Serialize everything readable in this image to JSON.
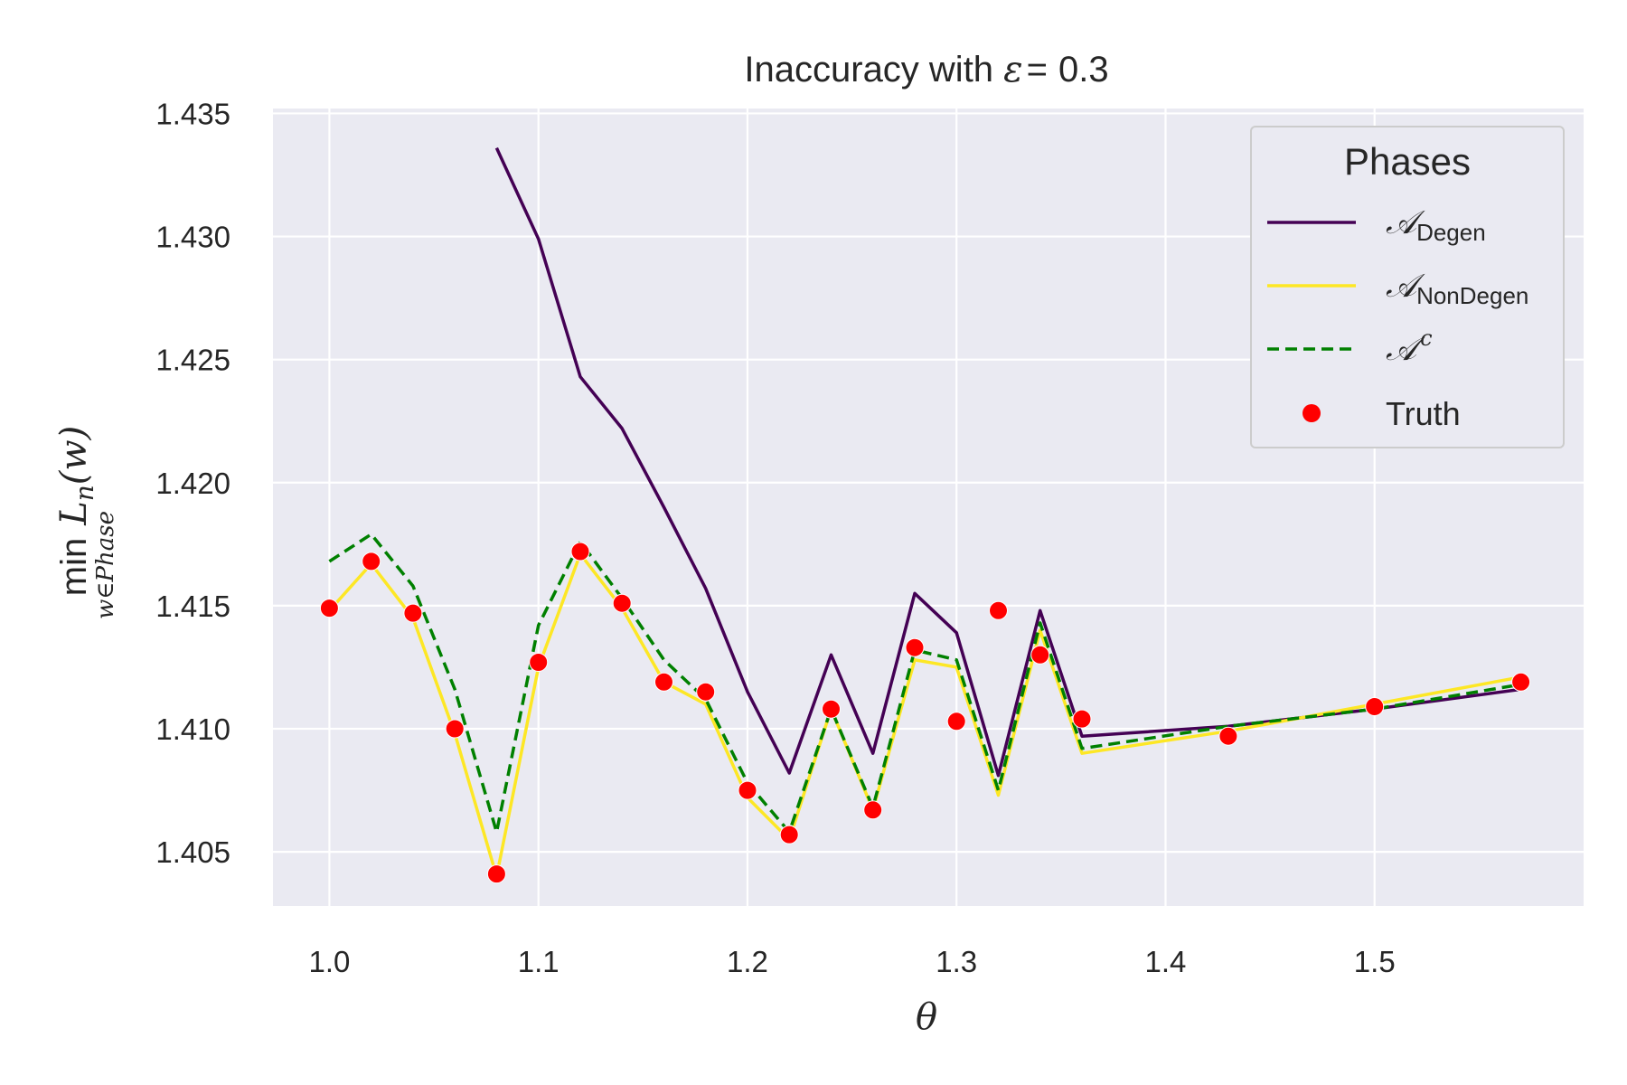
{
  "chart_data": {
    "type": "line",
    "title_prefix": "Inaccuracy with ",
    "title_symbol": "ε",
    "title_eq": "=",
    "title_value": "0.3",
    "xlabel": "θ",
    "ylabel_min": "min",
    "ylabel_expr": "L",
    "ylabel_sub": "n",
    "ylabel_arg": "(w)",
    "ylabel_under": "w∈Phase",
    "xlim": [
      0.973,
      1.6
    ],
    "ylim": [
      1.4028,
      1.4352
    ],
    "xticks": [
      1.0,
      1.1,
      1.2,
      1.3,
      1.4,
      1.5
    ],
    "xtick_labels": [
      "1.0",
      "1.1",
      "1.2",
      "1.3",
      "1.4",
      "1.5"
    ],
    "yticks": [
      1.405,
      1.41,
      1.415,
      1.42,
      1.425,
      1.43,
      1.435
    ],
    "ytick_labels": [
      "1.405",
      "1.410",
      "1.415",
      "1.420",
      "1.425",
      "1.430",
      "1.435"
    ],
    "grid": true,
    "legend": {
      "title": "Phases",
      "placement": "top-right",
      "entries": [
        {
          "key": "degen",
          "symbol": "𝒜",
          "sub": "Degen",
          "sup": ""
        },
        {
          "key": "nondegen",
          "symbol": "𝒜",
          "sub": "NonDegen",
          "sup": ""
        },
        {
          "key": "complement",
          "symbol": "𝒜",
          "sub": "",
          "sup": "c"
        },
        {
          "key": "truth",
          "symbol": "",
          "sub": "",
          "sup": "",
          "label": "Truth"
        }
      ]
    },
    "series": [
      {
        "key": "degen",
        "style": "solid",
        "color": "#440154",
        "x": [
          1.08,
          1.1,
          1.12,
          1.14,
          1.16,
          1.18,
          1.2,
          1.22,
          1.24,
          1.26,
          1.28,
          1.3,
          1.32,
          1.34,
          1.36,
          1.43,
          1.5,
          1.57
        ],
        "y": [
          1.4336,
          1.4299,
          1.4243,
          1.4222,
          1.419,
          1.4157,
          1.4115,
          1.4082,
          1.413,
          1.409,
          1.4155,
          1.4139,
          1.4081,
          1.4148,
          1.4097,
          1.4101,
          1.4108,
          1.4116
        ]
      },
      {
        "key": "nondegen",
        "style": "solid",
        "color": "#fde725",
        "x": [
          1.0,
          1.02,
          1.04,
          1.06,
          1.08,
          1.1,
          1.12,
          1.14,
          1.16,
          1.18,
          1.2,
          1.22,
          1.24,
          1.26,
          1.28,
          1.3,
          1.32,
          1.34,
          1.36,
          1.43,
          1.5,
          1.57
        ],
        "y": [
          1.4148,
          1.4167,
          1.4145,
          1.4098,
          1.404,
          1.4125,
          1.4171,
          1.4149,
          1.4119,
          1.411,
          1.4072,
          1.4055,
          1.4108,
          1.4067,
          1.4128,
          1.4125,
          1.4073,
          1.414,
          1.409,
          1.4099,
          1.411,
          1.4121
        ]
      },
      {
        "key": "complement",
        "style": "dashed",
        "color": "#008000",
        "x": [
          1.0,
          1.02,
          1.04,
          1.06,
          1.08,
          1.1,
          1.12,
          1.14,
          1.16,
          1.18,
          1.2,
          1.22,
          1.24,
          1.26,
          1.28,
          1.3,
          1.32,
          1.34,
          1.36,
          1.43,
          1.5,
          1.57
        ],
        "y": [
          1.4168,
          1.4179,
          1.4158,
          1.4116,
          1.4058,
          1.4142,
          1.4176,
          1.4153,
          1.4128,
          1.4112,
          1.4078,
          1.4058,
          1.4108,
          1.4068,
          1.4132,
          1.4128,
          1.4075,
          1.4143,
          1.4092,
          1.4101,
          1.4108,
          1.4118
        ]
      }
    ],
    "truth": {
      "key": "truth",
      "color": "#ff0000",
      "x": [
        1.0,
        1.02,
        1.04,
        1.06,
        1.08,
        1.1,
        1.12,
        1.14,
        1.16,
        1.18,
        1.2,
        1.22,
        1.24,
        1.26,
        1.28,
        1.3,
        1.32,
        1.34,
        1.36,
        1.43,
        1.5,
        1.57
      ],
      "y": [
        1.4149,
        1.4168,
        1.4147,
        1.41,
        1.4041,
        1.4127,
        1.4172,
        1.4151,
        1.4119,
        1.4115,
        1.4075,
        1.4057,
        1.4108,
        1.4067,
        1.4133,
        1.4103,
        1.4148,
        1.413,
        1.4104,
        1.4097,
        1.4109,
        1.4119
      ]
    }
  }
}
